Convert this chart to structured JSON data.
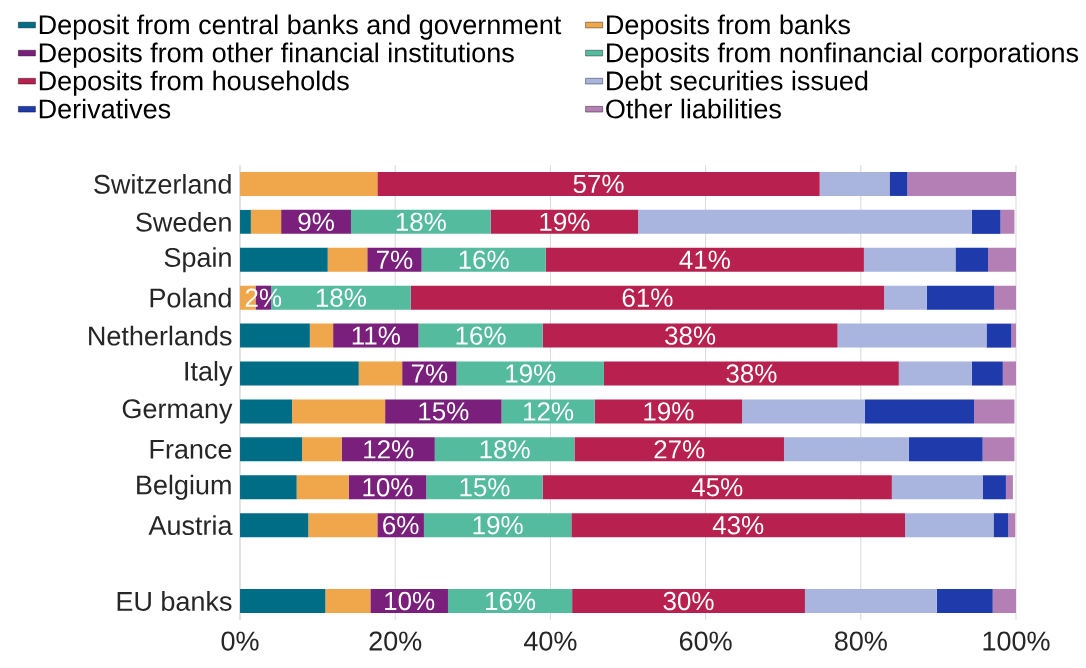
{
  "chart_data": {
    "type": "bar",
    "orientation": "horizontal",
    "stacked": true,
    "categories": [
      "Switzerland",
      "Sweden",
      "Spain",
      "Poland",
      "Netherlands",
      "Italy",
      "Germany",
      "France",
      "Belgium",
      "Austria",
      null,
      "EU banks"
    ],
    "series": [
      {
        "name": "Deposit from central banks and government",
        "color": "#006d87",
        "values": [
          0,
          1.4,
          11.3,
          0,
          9.0,
          15.3,
          6.7,
          8.0,
          7.3,
          8.8,
          null,
          11.0
        ]
      },
      {
        "name": "Deposits from banks",
        "color": "#f0a64a",
        "values": [
          17.7,
          3.9,
          5.1,
          2.0,
          3.0,
          5.6,
          12.0,
          5.1,
          6.7,
          8.9,
          null,
          5.8
        ]
      },
      {
        "name": "Deposits from other financial institutions",
        "color": "#7a1f7c",
        "values": [
          0,
          9,
          7,
          2,
          11,
          7,
          15,
          12,
          10,
          6,
          null,
          10
        ],
        "value_labels": [
          null,
          "9%",
          "7%",
          "2%",
          "11%",
          "7%",
          "15%",
          "12%",
          "10%",
          "6%",
          null,
          "10%"
        ]
      },
      {
        "name": "Deposits from nonfinancial corporations",
        "color": "#55bb9e",
        "values": [
          0,
          18,
          16,
          18,
          16,
          19,
          12,
          18,
          15,
          19,
          null,
          16
        ],
        "value_labels": [
          null,
          "18%",
          "16%",
          "18%",
          "16%",
          "19%",
          "12%",
          "18%",
          "15%",
          "19%",
          null,
          "16%"
        ]
      },
      {
        "name": "Deposits from households",
        "color": "#b8204f",
        "values": [
          57,
          19,
          41,
          61,
          38,
          38,
          19,
          27,
          45,
          43,
          null,
          30
        ],
        "value_labels": [
          "57%",
          "19%",
          "41%",
          "61%",
          "38%",
          "38%",
          "19%",
          "27%",
          "45%",
          "43%",
          null,
          "30%"
        ]
      },
      {
        "name": "Debt securities issued",
        "color": "#a9b5de",
        "values": [
          9,
          43,
          11.8,
          5.5,
          19.2,
          9.4,
          15.8,
          16.1,
          11.7,
          11.4,
          null,
          17.0
        ]
      },
      {
        "name": "Derivatives",
        "color": "#1f3aab",
        "values": [
          2.3,
          3.7,
          4.2,
          8.7,
          3.2,
          4.0,
          14.1,
          9.5,
          3.0,
          1.9,
          null,
          7.2
        ]
      },
      {
        "name": "Other liabilities",
        "color": "#b47fb5",
        "values": [
          14.0,
          1.8,
          3.6,
          2.8,
          0.6,
          1.7,
          5.2,
          4.1,
          0.9,
          0.9,
          null,
          3.1
        ]
      }
    ],
    "xlim": [
      0,
      100
    ],
    "xticks": [
      {
        "value": 0,
        "label": "0%"
      },
      {
        "value": 20,
        "label": "20%"
      },
      {
        "value": 40,
        "label": "40%"
      },
      {
        "value": 60,
        "label": "60%"
      },
      {
        "value": 80,
        "label": "80%"
      },
      {
        "value": 100,
        "label": "100%"
      }
    ],
    "grid": "x",
    "legend": "top"
  }
}
